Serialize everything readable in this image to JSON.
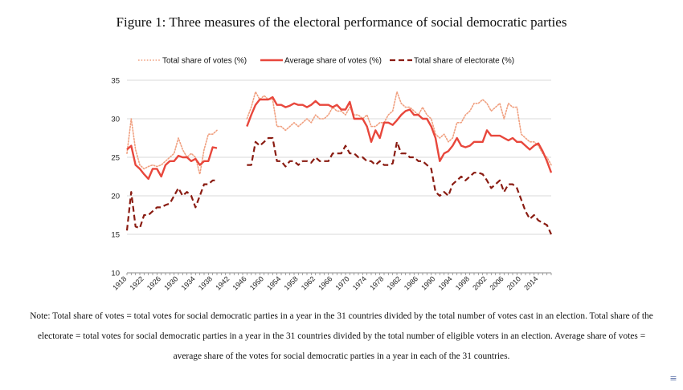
{
  "figure": {
    "title": "Figure 1: Three measures of the electoral performance of social democratic parties",
    "note": "Note: Total share of votes = total votes for social democratic parties in a year in the 31 countries divided by the total number of votes cast in an election. Total share of the electorate = total votes for social democratic parties in a year in the 31 countries divided by the total number of eligible voters in an election. Average share of votes = average share of the votes for social democratic parties in a year in each of the 31 countries."
  },
  "icons": {
    "corner": "menu-icon"
  },
  "chart_data": {
    "type": "line",
    "title": "",
    "xlabel": "",
    "ylabel": "",
    "xlim": [
      1918,
      2017
    ],
    "ylim": [
      10,
      35
    ],
    "yticks": [
      10,
      15,
      20,
      25,
      30,
      35
    ],
    "xticks": [
      1918,
      1922,
      1926,
      1930,
      1934,
      1938,
      1942,
      1946,
      1950,
      1954,
      1958,
      1962,
      1966,
      1970,
      1974,
      1978,
      1982,
      1986,
      1990,
      1994,
      1998,
      2002,
      2006,
      2010,
      2014
    ],
    "grid": true,
    "legend_position": "top",
    "series": [
      {
        "name": "Total share of votes (%)",
        "color": "#f0a080",
        "style": "dotted",
        "points": [
          [
            1918,
            25.5
          ],
          [
            1919,
            30
          ],
          [
            1920,
            26
          ],
          [
            1921,
            24
          ],
          [
            1922,
            23.5
          ],
          [
            1923,
            23.8
          ],
          [
            1924,
            24
          ],
          [
            1925,
            23.8
          ],
          [
            1926,
            24
          ],
          [
            1927,
            24.5
          ],
          [
            1928,
            25
          ],
          [
            1929,
            25.5
          ],
          [
            1930,
            27.5
          ],
          [
            1931,
            26
          ],
          [
            1932,
            25
          ],
          [
            1933,
            25.5
          ],
          [
            1934,
            25
          ],
          [
            1935,
            22.8
          ],
          [
            1936,
            26
          ],
          [
            1937,
            28
          ],
          [
            1938,
            28
          ],
          [
            1939,
            28.5
          ],
          null,
          [
            1946,
            30
          ],
          [
            1947,
            31.5
          ],
          [
            1948,
            33.5
          ],
          [
            1949,
            32.5
          ],
          [
            1950,
            33
          ],
          [
            1951,
            32.5
          ],
          [
            1952,
            32.5
          ],
          [
            1953,
            29
          ],
          [
            1954,
            29
          ],
          [
            1955,
            28.5
          ],
          [
            1956,
            29
          ],
          [
            1957,
            29.5
          ],
          [
            1958,
            29
          ],
          [
            1959,
            29.5
          ],
          [
            1960,
            30
          ],
          [
            1961,
            29.5
          ],
          [
            1962,
            30.5
          ],
          [
            1963,
            30
          ],
          [
            1964,
            30
          ],
          [
            1965,
            30.5
          ],
          [
            1966,
            31.5
          ],
          [
            1967,
            31
          ],
          [
            1968,
            31
          ],
          [
            1969,
            30.5
          ],
          [
            1970,
            31.5
          ],
          [
            1971,
            30.5
          ],
          [
            1972,
            30.5
          ],
          [
            1973,
            30
          ],
          [
            1974,
            30.5
          ],
          [
            1975,
            29
          ],
          [
            1976,
            29
          ],
          [
            1977,
            29.5
          ],
          [
            1978,
            29.5
          ],
          [
            1979,
            30.5
          ],
          [
            1980,
            31
          ],
          [
            1981,
            33.5
          ],
          [
            1982,
            32
          ],
          [
            1983,
            31.5
          ],
          [
            1984,
            31.5
          ],
          [
            1985,
            31
          ],
          [
            1986,
            30.5
          ],
          [
            1987,
            31.5
          ],
          [
            1988,
            30.5
          ],
          [
            1989,
            30
          ],
          [
            1990,
            28
          ],
          [
            1991,
            27.5
          ],
          [
            1992,
            28
          ],
          [
            1993,
            27
          ],
          [
            1994,
            27.5
          ],
          [
            1995,
            29.5
          ],
          [
            1996,
            29.5
          ],
          [
            1997,
            30.5
          ],
          [
            1998,
            31
          ],
          [
            1999,
            32
          ],
          [
            2000,
            32
          ],
          [
            2001,
            32.5
          ],
          [
            2002,
            32
          ],
          [
            2003,
            31
          ],
          [
            2004,
            31.5
          ],
          [
            2005,
            32
          ],
          [
            2006,
            30
          ],
          [
            2007,
            32
          ],
          [
            2008,
            31.5
          ],
          [
            2009,
            31.5
          ],
          [
            2010,
            28
          ],
          [
            2011,
            27.5
          ],
          [
            2012,
            27
          ],
          [
            2013,
            27
          ],
          [
            2014,
            26.5
          ],
          [
            2015,
            25.5
          ],
          [
            2016,
            25
          ],
          [
            2017,
            24
          ]
        ]
      },
      {
        "name": "Average share of votes (%)",
        "color": "#e8473c",
        "style": "solid",
        "points": [
          [
            1918,
            26
          ],
          [
            1919,
            26.5
          ],
          [
            1920,
            24
          ],
          [
            1921,
            23.5
          ],
          [
            1922,
            22.8
          ],
          [
            1923,
            22.2
          ],
          [
            1924,
            23.5
          ],
          [
            1925,
            23.5
          ],
          [
            1926,
            22.5
          ],
          [
            1927,
            24
          ],
          [
            1928,
            24.5
          ],
          [
            1929,
            24.5
          ],
          [
            1930,
            25.2
          ],
          [
            1931,
            25
          ],
          [
            1932,
            25
          ],
          [
            1933,
            24.5
          ],
          [
            1934,
            24.8
          ],
          [
            1935,
            24
          ],
          [
            1936,
            24.5
          ],
          [
            1937,
            24.5
          ],
          [
            1938,
            26.3
          ],
          [
            1939,
            26.2
          ],
          null,
          [
            1946,
            29
          ],
          [
            1947,
            30.5
          ],
          [
            1948,
            31.8
          ],
          [
            1949,
            32.5
          ],
          [
            1950,
            32.5
          ],
          [
            1951,
            32.5
          ],
          [
            1952,
            32.8
          ],
          [
            1953,
            31.8
          ],
          [
            1954,
            31.8
          ],
          [
            1955,
            31.5
          ],
          [
            1956,
            31.7
          ],
          [
            1957,
            32
          ],
          [
            1958,
            31.8
          ],
          [
            1959,
            31.8
          ],
          [
            1960,
            31.5
          ],
          [
            1961,
            31.8
          ],
          [
            1962,
            32.3
          ],
          [
            1963,
            31.8
          ],
          [
            1964,
            31.8
          ],
          [
            1965,
            31.8
          ],
          [
            1966,
            31.5
          ],
          [
            1967,
            31.8
          ],
          [
            1968,
            31.2
          ],
          [
            1969,
            31.2
          ],
          [
            1970,
            32.2
          ],
          [
            1971,
            30
          ],
          [
            1972,
            30
          ],
          [
            1973,
            30
          ],
          [
            1974,
            29
          ],
          [
            1975,
            27
          ],
          [
            1976,
            28.5
          ],
          [
            1977,
            27.5
          ],
          [
            1978,
            29.5
          ],
          [
            1979,
            29.5
          ],
          [
            1980,
            29.2
          ],
          [
            1981,
            29.8
          ],
          [
            1982,
            30.5
          ],
          [
            1983,
            31
          ],
          [
            1984,
            31.2
          ],
          [
            1985,
            30.5
          ],
          [
            1986,
            30.5
          ],
          [
            1987,
            30
          ],
          [
            1988,
            30
          ],
          [
            1989,
            29
          ],
          [
            1990,
            27.5
          ],
          [
            1991,
            24.5
          ],
          [
            1992,
            25.5
          ],
          [
            1993,
            25.8
          ],
          [
            1994,
            26.5
          ],
          [
            1995,
            27.5
          ],
          [
            1996,
            26.5
          ],
          [
            1997,
            26.3
          ],
          [
            1998,
            26.5
          ],
          [
            1999,
            27
          ],
          [
            2000,
            27
          ],
          [
            2001,
            27
          ],
          [
            2002,
            28.5
          ],
          [
            2003,
            27.8
          ],
          [
            2004,
            27.8
          ],
          [
            2005,
            27.8
          ],
          [
            2006,
            27.5
          ],
          [
            2007,
            27.2
          ],
          [
            2008,
            27.5
          ],
          [
            2009,
            27
          ],
          [
            2010,
            27
          ],
          [
            2011,
            26.5
          ],
          [
            2012,
            26
          ],
          [
            2013,
            26.5
          ],
          [
            2014,
            26.8
          ],
          [
            2015,
            25.8
          ],
          [
            2016,
            24.5
          ],
          [
            2017,
            23
          ]
        ]
      },
      {
        "name": "Total share of electorate (%)",
        "color": "#8a1c12",
        "style": "dashed",
        "points": [
          [
            1918,
            15.5
          ],
          [
            1919,
            20.5
          ],
          [
            1920,
            16
          ],
          [
            1921,
            15.8
          ],
          [
            1922,
            17.5
          ],
          [
            1923,
            17.5
          ],
          [
            1924,
            18
          ],
          [
            1925,
            18.5
          ],
          [
            1926,
            18.5
          ],
          [
            1927,
            18.8
          ],
          [
            1928,
            19
          ],
          [
            1929,
            20
          ],
          [
            1930,
            21
          ],
          [
            1931,
            20
          ],
          [
            1932,
            20.5
          ],
          [
            1933,
            20
          ],
          [
            1934,
            18.5
          ],
          [
            1935,
            20
          ],
          [
            1936,
            21.5
          ],
          [
            1937,
            21.5
          ],
          [
            1938,
            22
          ],
          [
            1939,
            22
          ],
          null,
          [
            1946,
            24
          ],
          [
            1947,
            24
          ],
          [
            1948,
            27
          ],
          [
            1949,
            26.5
          ],
          [
            1950,
            27
          ],
          [
            1951,
            27.5
          ],
          [
            1952,
            27.5
          ],
          [
            1953,
            24.5
          ],
          [
            1954,
            24.5
          ],
          [
            1955,
            23.8
          ],
          [
            1956,
            24.5
          ],
          [
            1957,
            24.5
          ],
          [
            1958,
            24
          ],
          [
            1959,
            24.5
          ],
          [
            1960,
            24.5
          ],
          [
            1961,
            24.3
          ],
          [
            1962,
            25
          ],
          [
            1963,
            24.5
          ],
          [
            1964,
            24.5
          ],
          [
            1965,
            24.5
          ],
          [
            1966,
            25.5
          ],
          [
            1967,
            25.5
          ],
          [
            1968,
            25.5
          ],
          [
            1969,
            26.5
          ],
          [
            1970,
            25.5
          ],
          [
            1971,
            25.5
          ],
          [
            1972,
            25
          ],
          [
            1973,
            25
          ],
          [
            1974,
            24.5
          ],
          [
            1975,
            24.5
          ],
          [
            1976,
            24
          ],
          [
            1977,
            24.5
          ],
          [
            1978,
            24
          ],
          [
            1979,
            24
          ],
          [
            1980,
            24.2
          ],
          [
            1981,
            27
          ],
          [
            1982,
            25.5
          ],
          [
            1983,
            25.5
          ],
          [
            1984,
            25
          ],
          [
            1985,
            25
          ],
          [
            1986,
            24.5
          ],
          [
            1987,
            24.5
          ],
          [
            1988,
            24
          ],
          [
            1989,
            23.5
          ],
          [
            1990,
            20.5
          ],
          [
            1991,
            20
          ],
          [
            1992,
            20.5
          ],
          [
            1993,
            20
          ],
          [
            1994,
            21.5
          ],
          [
            1995,
            22
          ],
          [
            1996,
            22.5
          ],
          [
            1997,
            22
          ],
          [
            1998,
            22.5
          ],
          [
            1999,
            23
          ],
          [
            2000,
            23
          ],
          [
            2001,
            22.8
          ],
          [
            2002,
            22
          ],
          [
            2003,
            21
          ],
          [
            2004,
            21.5
          ],
          [
            2005,
            22
          ],
          [
            2006,
            20.5
          ],
          [
            2007,
            21.5
          ],
          [
            2008,
            21.5
          ],
          [
            2009,
            21
          ],
          [
            2010,
            19.5
          ],
          [
            2011,
            18
          ],
          [
            2012,
            17
          ],
          [
            2013,
            17.5
          ],
          [
            2014,
            16.8
          ],
          [
            2015,
            16.5
          ],
          [
            2016,
            16.2
          ],
          [
            2017,
            15
          ]
        ]
      }
    ]
  }
}
